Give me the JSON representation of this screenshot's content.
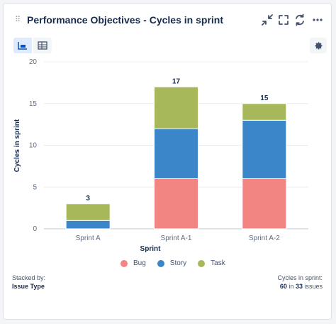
{
  "gadget": {
    "title": "Performance Objectives - Cycles in sprint",
    "header_icons": [
      "collapse-icon",
      "fullscreen-icon",
      "refresh-icon",
      "more-icon"
    ],
    "view_toggle": {
      "active": "chart-view-icon",
      "inactive": "table-view-icon"
    },
    "settings_icon": "gear-icon"
  },
  "colors": {
    "Bug": "#f28482",
    "Story": "#3a86c8",
    "Task": "#a6b85a",
    "accent": "#deebff"
  },
  "chart_data": {
    "type": "bar",
    "stacked": true,
    "categories": [
      "Sprint A",
      "Sprint A-1",
      "Sprint A-2"
    ],
    "series": [
      {
        "name": "Bug",
        "values": [
          0,
          6,
          6
        ]
      },
      {
        "name": "Story",
        "values": [
          1,
          6,
          7
        ]
      },
      {
        "name": "Task",
        "values": [
          2,
          5,
          2
        ]
      }
    ],
    "totals": [
      "3",
      "17",
      "15"
    ],
    "ylim": [
      0,
      20
    ],
    "yticks": [
      "0",
      "5",
      "10",
      "15",
      "20"
    ],
    "xlabel": "Sprint",
    "ylabel": "Cycles in sprint",
    "grid": true,
    "legend_position": "bottom"
  },
  "footer": {
    "stacked_by_label": "Stacked by:",
    "stacked_by_value": "Issue Type",
    "summary_label": "Cycles in sprint:",
    "summary_count": "60",
    "summary_in": "in",
    "summary_issues": "33",
    "summary_issues_word": "issues"
  }
}
